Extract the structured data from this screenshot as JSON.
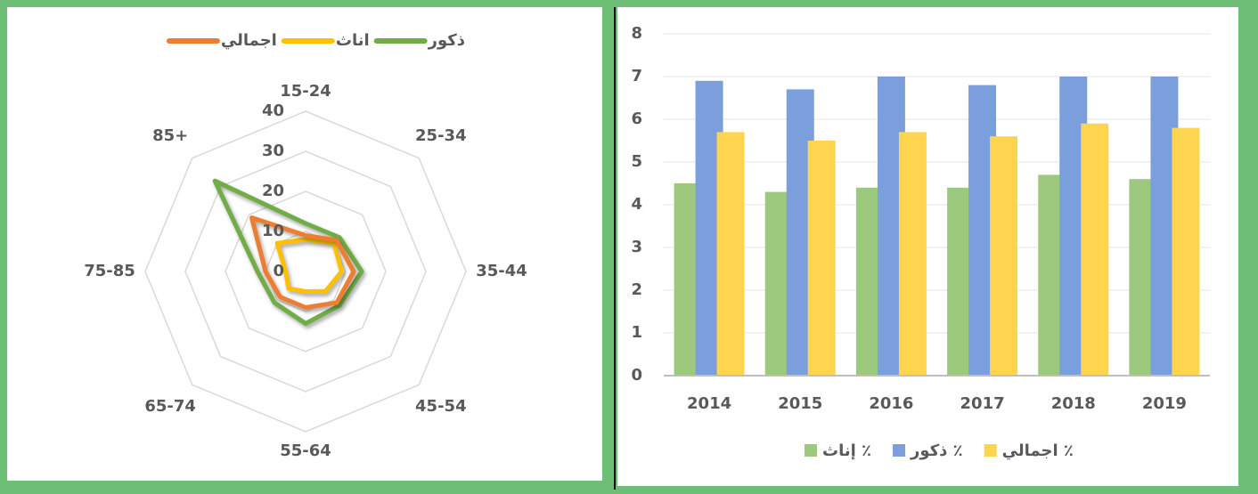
{
  "chart_data": [
    {
      "type": "radar",
      "categories": [
        "15-24",
        "25-34",
        "35-44",
        "45-54",
        "55-64",
        "65-74",
        "75-85",
        "85+"
      ],
      "series": [
        {
          "name": "ذكور",
          "color": "#70ad47",
          "values": [
            12,
            12,
            14,
            12,
            13,
            11,
            12,
            32
          ]
        },
        {
          "name": "اناث",
          "color": "#ffc000",
          "values": [
            8,
            10,
            9,
            7,
            5,
            6,
            5,
            10
          ]
        },
        {
          "name": "اجمالي",
          "color": "#ed7d31",
          "values": [
            9,
            11,
            12,
            11,
            9,
            9,
            10,
            19
          ]
        }
      ],
      "ylim": [
        0,
        40
      ],
      "yticks": [
        0,
        10,
        20,
        30,
        40
      ],
      "grid": true
    },
    {
      "type": "bar",
      "categories": [
        "2014",
        "2015",
        "2016",
        "2017",
        "2018",
        "2019"
      ],
      "series": [
        {
          "name": "إناث ٪",
          "color": "#9dc97f",
          "values": [
            4.5,
            4.3,
            4.4,
            4.4,
            4.7,
            4.6
          ]
        },
        {
          "name": "ذكور ٪",
          "color": "#7b9fdc",
          "values": [
            6.9,
            6.7,
            7.0,
            6.8,
            7.0,
            7.0
          ]
        },
        {
          "name": "اجمالي ٪",
          "color": "#ffd54f",
          "values": [
            5.7,
            5.5,
            5.7,
            5.6,
            5.9,
            5.8
          ]
        }
      ],
      "ylim": [
        0,
        8
      ],
      "yticks": [
        0,
        1,
        2,
        3,
        4,
        5,
        6,
        7,
        8
      ],
      "grid": true
    }
  ]
}
